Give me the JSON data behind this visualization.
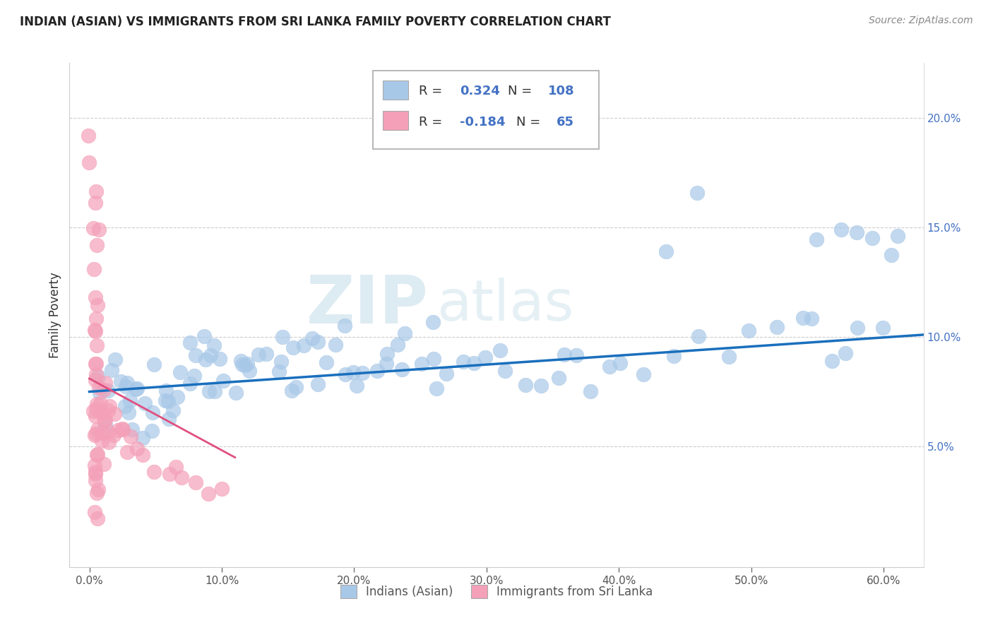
{
  "title": "INDIAN (ASIAN) VS IMMIGRANTS FROM SRI LANKA FAMILY POVERTY CORRELATION CHART",
  "source": "Source: ZipAtlas.com",
  "xlabel_ticks": [
    "0.0%",
    "10.0%",
    "20.0%",
    "30.0%",
    "40.0%",
    "50.0%",
    "60.0%"
  ],
  "xlabel_vals": [
    0.0,
    0.1,
    0.2,
    0.3,
    0.4,
    0.5,
    0.6
  ],
  "ylabel": "Family Poverty",
  "ylabel_ticks": [
    "5.0%",
    "10.0%",
    "15.0%",
    "20.0%"
  ],
  "ylabel_vals": [
    0.05,
    0.1,
    0.15,
    0.2
  ],
  "ylim": [
    -0.005,
    0.225
  ],
  "xlim": [
    -0.015,
    0.63
  ],
  "color_blue": "#a8c8e8",
  "color_pink": "#f4a0b8",
  "color_blue_line": "#1a6fbd",
  "color_pink_line": "#e05080",
  "watermark_zip": "ZIP",
  "watermark_atlas": "atlas",
  "series1_label": "Indians (Asian)",
  "series2_label": "Immigrants from Sri Lanka",
  "blue_line_x": [
    0.0,
    0.63
  ],
  "blue_line_y": [
    0.075,
    0.101
  ],
  "pink_line_x": [
    0.0,
    0.11
  ],
  "pink_line_y": [
    0.081,
    0.045
  ],
  "blue_x": [
    0.005,
    0.008,
    0.01,
    0.012,
    0.015,
    0.02,
    0.022,
    0.025,
    0.025,
    0.028,
    0.03,
    0.032,
    0.035,
    0.038,
    0.04,
    0.042,
    0.045,
    0.048,
    0.05,
    0.052,
    0.055,
    0.058,
    0.06,
    0.062,
    0.065,
    0.068,
    0.07,
    0.075,
    0.078,
    0.08,
    0.082,
    0.085,
    0.088,
    0.09,
    0.092,
    0.095,
    0.098,
    0.1,
    0.105,
    0.11,
    0.112,
    0.115,
    0.118,
    0.12,
    0.125,
    0.13,
    0.135,
    0.14,
    0.145,
    0.15,
    0.152,
    0.155,
    0.158,
    0.16,
    0.165,
    0.17,
    0.175,
    0.18,
    0.185,
    0.19,
    0.195,
    0.2,
    0.205,
    0.21,
    0.215,
    0.22,
    0.225,
    0.23,
    0.235,
    0.24,
    0.25,
    0.255,
    0.26,
    0.265,
    0.27,
    0.28,
    0.29,
    0.3,
    0.31,
    0.32,
    0.33,
    0.34,
    0.35,
    0.36,
    0.37,
    0.38,
    0.39,
    0.4,
    0.42,
    0.44,
    0.46,
    0.48,
    0.5,
    0.52,
    0.54,
    0.55,
    0.56,
    0.57,
    0.58,
    0.6,
    0.44,
    0.46,
    0.55,
    0.57,
    0.58,
    0.59,
    0.6,
    0.61
  ],
  "blue_y": [
    0.08,
    0.075,
    0.075,
    0.085,
    0.075,
    0.07,
    0.07,
    0.075,
    0.08,
    0.075,
    0.07,
    0.065,
    0.07,
    0.065,
    0.065,
    0.065,
    0.065,
    0.07,
    0.065,
    0.07,
    0.07,
    0.075,
    0.075,
    0.075,
    0.075,
    0.08,
    0.08,
    0.085,
    0.085,
    0.085,
    0.085,
    0.085,
    0.088,
    0.09,
    0.088,
    0.09,
    0.088,
    0.09,
    0.09,
    0.085,
    0.085,
    0.085,
    0.085,
    0.085,
    0.09,
    0.09,
    0.09,
    0.09,
    0.085,
    0.085,
    0.085,
    0.09,
    0.085,
    0.09,
    0.09,
    0.085,
    0.09,
    0.085,
    0.09,
    0.09,
    0.085,
    0.09,
    0.085,
    0.09,
    0.085,
    0.085,
    0.09,
    0.09,
    0.085,
    0.09,
    0.09,
    0.085,
    0.085,
    0.09,
    0.085,
    0.085,
    0.09,
    0.085,
    0.09,
    0.085,
    0.085,
    0.09,
    0.085,
    0.085,
    0.09,
    0.085,
    0.085,
    0.085,
    0.09,
    0.09,
    0.1,
    0.1,
    0.1,
    0.1,
    0.1,
    0.1,
    0.1,
    0.1,
    0.1,
    0.1,
    0.135,
    0.135,
    0.14,
    0.14,
    0.14,
    0.14,
    0.14,
    0.14
  ],
  "pink_x": [
    0.0,
    0.0,
    0.005,
    0.005,
    0.005,
    0.005,
    0.005,
    0.005,
    0.005,
    0.005,
    0.005,
    0.005,
    0.005,
    0.005,
    0.005,
    0.005,
    0.005,
    0.005,
    0.005,
    0.005,
    0.005,
    0.005,
    0.005,
    0.005,
    0.005,
    0.005,
    0.005,
    0.005,
    0.005,
    0.005,
    0.005,
    0.005,
    0.005,
    0.005,
    0.005,
    0.005,
    0.01,
    0.01,
    0.01,
    0.01,
    0.01,
    0.01,
    0.01,
    0.01,
    0.015,
    0.015,
    0.015,
    0.015,
    0.015,
    0.02,
    0.02,
    0.02,
    0.025,
    0.025,
    0.03,
    0.03,
    0.035,
    0.04,
    0.05,
    0.06,
    0.065,
    0.07,
    0.08,
    0.09,
    0.1
  ],
  "pink_y": [
    0.19,
    0.175,
    0.165,
    0.16,
    0.155,
    0.15,
    0.14,
    0.13,
    0.12,
    0.115,
    0.11,
    0.105,
    0.1,
    0.095,
    0.09,
    0.085,
    0.082,
    0.078,
    0.075,
    0.072,
    0.068,
    0.065,
    0.062,
    0.058,
    0.055,
    0.052,
    0.048,
    0.045,
    0.042,
    0.038,
    0.035,
    0.032,
    0.028,
    0.025,
    0.02,
    0.015,
    0.08,
    0.075,
    0.07,
    0.065,
    0.06,
    0.055,
    0.05,
    0.045,
    0.07,
    0.065,
    0.06,
    0.055,
    0.05,
    0.065,
    0.06,
    0.055,
    0.06,
    0.055,
    0.055,
    0.05,
    0.05,
    0.045,
    0.04,
    0.04,
    0.04,
    0.035,
    0.035,
    0.03,
    0.03
  ]
}
